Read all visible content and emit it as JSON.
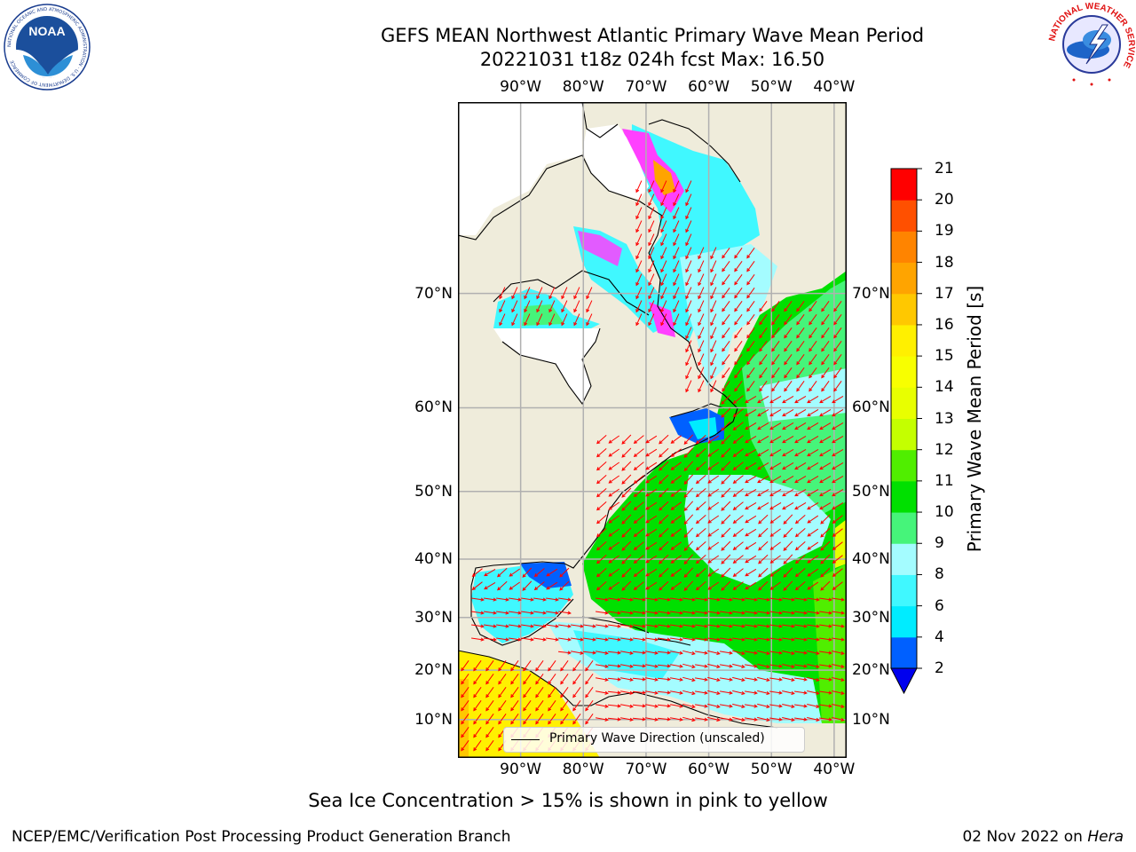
{
  "title": {
    "line1": "GEFS MEAN Northwest Atlantic Primary Wave Mean Period",
    "line2": "20221031 t18z 024h fcst   Max: 16.50"
  },
  "map": {
    "projection": "mercator",
    "lon_range": [
      -100,
      -38
    ],
    "lat_range": [
      2,
      80
    ],
    "lon_ticks": [
      "90°W",
      "80°W",
      "70°W",
      "60°W",
      "50°W",
      "40°W"
    ],
    "lat_ticks": [
      "10°N",
      "20°N",
      "30°N",
      "40°N",
      "50°N",
      "60°N",
      "70°N"
    ],
    "gridlines": true,
    "land_color": "#efecdb",
    "arrow_color": "#ff0000"
  },
  "colorbar": {
    "label": "Primary Wave Mean Period [s]",
    "ticks": [
      "2",
      "4",
      "6",
      "8",
      "9",
      "10",
      "11",
      "12",
      "13",
      "14",
      "15",
      "16",
      "17",
      "18",
      "19",
      "20",
      "21"
    ],
    "colors": [
      "#0060ff",
      "#00ecff",
      "#40f8ff",
      "#a4fcff",
      "#46f47a",
      "#00e000",
      "#50ee00",
      "#c4ff00",
      "#e8ff00",
      "#f8ff00",
      "#fff000",
      "#ffc800",
      "#ffa400",
      "#ff8400",
      "#ff5000",
      "#ff0000"
    ],
    "extend_color": "#0000ee"
  },
  "legend": {
    "label": "Primary Wave Direction (unscaled)"
  },
  "note": "Sea Ice Concentration > 15% is shown in pink to yellow",
  "footer": {
    "left": "NCEP/EMC/Verification Post Processing Product Generation Branch",
    "date": "02 Nov 2022 on",
    "host": "Hera"
  },
  "logos": {
    "noaa": "NOAA",
    "noaa_ring": "NATIONAL OCEANIC AND ATMOSPHERIC ADMINISTRATION · U.S. DEPARTMENT OF COMMERCE",
    "nws_ring": "NATIONAL WEATHER SERVICE"
  }
}
